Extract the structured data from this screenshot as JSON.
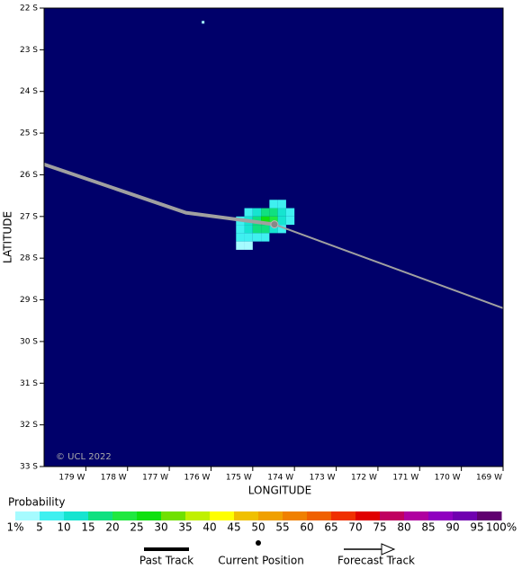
{
  "chart_data": {
    "type": "probability-map",
    "xlabel": "LONGITUDE",
    "ylabel": "LATITUDE",
    "xlim": [
      -180,
      -169
    ],
    "ylim": [
      -33,
      -22
    ],
    "xticks": [
      {
        "value": -179,
        "label": "179 W"
      },
      {
        "value": -178,
        "label": "178 W"
      },
      {
        "value": -177,
        "label": "177 W"
      },
      {
        "value": -176,
        "label": "176 W"
      },
      {
        "value": -175,
        "label": "175 W"
      },
      {
        "value": -174,
        "label": "174 W"
      },
      {
        "value": -173,
        "label": "173 W"
      },
      {
        "value": -172,
        "label": "172 W"
      },
      {
        "value": -171,
        "label": "171 W"
      },
      {
        "value": -170,
        "label": "170 W"
      },
      {
        "value": -169,
        "label": "169 W"
      }
    ],
    "yticks": [
      {
        "value": -22,
        "label": "22 S"
      },
      {
        "value": -23,
        "label": "23 S"
      },
      {
        "value": -24,
        "label": "24 S"
      },
      {
        "value": -25,
        "label": "25 S"
      },
      {
        "value": -26,
        "label": "26 S"
      },
      {
        "value": -27,
        "label": "27 S"
      },
      {
        "value": -28,
        "label": "28 S"
      },
      {
        "value": -29,
        "label": "29 S"
      },
      {
        "value": -30,
        "label": "30 S"
      },
      {
        "value": -31,
        "label": "31 S"
      },
      {
        "value": -32,
        "label": "32 S"
      },
      {
        "value": -33,
        "label": "33 S"
      }
    ],
    "background": "#00006a",
    "copyright": "© UCL 2022",
    "cell_size": 0.2,
    "cells": [
      [
        -176.19,
        -22.34,
        1
      ],
      [
        -174.5,
        -26.7,
        5
      ],
      [
        -174.3,
        -26.7,
        5
      ],
      [
        -175.1,
        -26.9,
        5
      ],
      [
        -174.9,
        -26.9,
        10
      ],
      [
        -174.7,
        -26.9,
        15
      ],
      [
        -174.5,
        -26.9,
        15
      ],
      [
        -174.3,
        -26.9,
        10
      ],
      [
        -174.1,
        -26.9,
        5
      ],
      [
        -175.3,
        -27.1,
        5
      ],
      [
        -175.1,
        -27.1,
        10
      ],
      [
        -174.9,
        -27.1,
        15
      ],
      [
        -174.7,
        -27.1,
        25
      ],
      [
        -174.5,
        -27.1,
        20
      ],
      [
        -174.3,
        -27.1,
        10
      ],
      [
        -174.1,
        -27.1,
        5
      ],
      [
        -175.3,
        -27.3,
        5
      ],
      [
        -175.1,
        -27.3,
        10
      ],
      [
        -174.9,
        -27.3,
        15
      ],
      [
        -174.7,
        -27.3,
        15
      ],
      [
        -174.5,
        -27.3,
        10
      ],
      [
        -174.3,
        -27.3,
        5
      ],
      [
        -175.3,
        -27.5,
        5
      ],
      [
        -175.1,
        -27.5,
        5
      ],
      [
        -174.9,
        -27.5,
        5
      ],
      [
        -174.7,
        -27.5,
        5
      ],
      [
        -175.3,
        -27.7,
        1
      ],
      [
        -175.1,
        -27.7,
        1
      ]
    ],
    "past_track": {
      "name": "Past Track",
      "lon": [
        -180,
        -176.6,
        -174.48
      ],
      "lat": [
        -25.75,
        -26.91,
        -27.19
      ],
      "color": "#a0a0a0"
    },
    "current_position": {
      "name": "Current Position",
      "lon": -174.48,
      "lat": -27.19
    },
    "forecast_track": {
      "name": "Forecast Track",
      "lon": [
        -174.48,
        -169
      ],
      "lat": [
        -27.19,
        -29.2
      ],
      "color": "#a0a0a0"
    },
    "scale": {
      "title": "Probability",
      "levels": [
        {
          "value": 1,
          "label": "1%"
        },
        5,
        10,
        15,
        20,
        25,
        30,
        35,
        40,
        45,
        50,
        55,
        60,
        65,
        70,
        75,
        80,
        85,
        90,
        95,
        {
          "value": 100,
          "label": "100%"
        }
      ],
      "colors": [
        "#a6fbff",
        "#3ff0f0",
        "#16e4d0",
        "#10e080",
        "#20e840",
        "#10e010",
        "#70e000",
        "#c0f000",
        "#ffff00",
        "#f0c000",
        "#f0a000",
        "#f08000",
        "#f06000",
        "#f03000",
        "#e00000",
        "#c00060",
        "#b000a0",
        "#9000c0",
        "#7000b0",
        "#600070"
      ]
    }
  }
}
